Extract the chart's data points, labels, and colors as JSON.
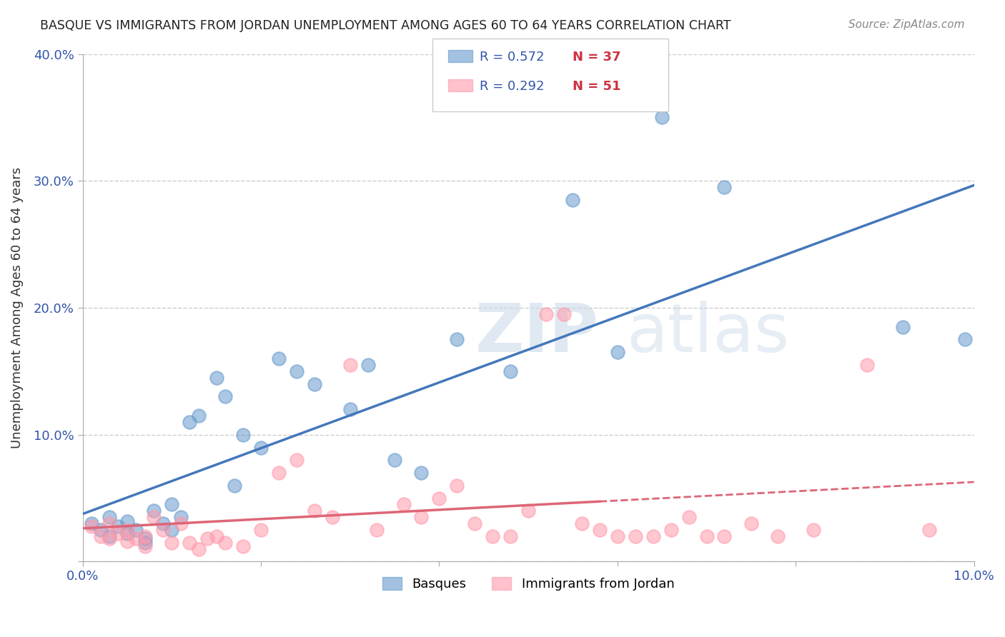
{
  "title": "BASQUE VS IMMIGRANTS FROM JORDAN UNEMPLOYMENT AMONG AGES 60 TO 64 YEARS CORRELATION CHART",
  "source": "Source: ZipAtlas.com",
  "xlabel": "",
  "ylabel": "Unemployment Among Ages 60 to 64 years",
  "xlim": [
    0.0,
    0.1
  ],
  "ylim": [
    0.0,
    0.4
  ],
  "xticks": [
    0.0,
    0.02,
    0.04,
    0.06,
    0.08,
    0.1
  ],
  "yticks": [
    0.0,
    0.1,
    0.2,
    0.3,
    0.4
  ],
  "xticklabels": [
    "0.0%",
    "",
    "",
    "",
    "",
    "10.0%"
  ],
  "yticklabels": [
    "",
    "10.0%",
    "20.0%",
    "30.0%",
    "40.0%"
  ],
  "grid_color": "#cccccc",
  "background_color": "#ffffff",
  "legend_r_blue": "R = 0.572",
  "legend_n_blue": "N = 37",
  "legend_r_pink": "R = 0.292",
  "legend_n_pink": "N = 51",
  "blue_color": "#6699cc",
  "pink_color": "#ff99aa",
  "blue_line_color": "#4477bb",
  "pink_line_color": "#dd6677",
  "basques_x": [
    0.001,
    0.002,
    0.003,
    0.003,
    0.004,
    0.005,
    0.005,
    0.006,
    0.007,
    0.007,
    0.008,
    0.009,
    0.01,
    0.01,
    0.011,
    0.012,
    0.013,
    0.015,
    0.016,
    0.017,
    0.018,
    0.02,
    0.022,
    0.024,
    0.026,
    0.03,
    0.032,
    0.035,
    0.038,
    0.042,
    0.048,
    0.055,
    0.06,
    0.065,
    0.072,
    0.092,
    0.099
  ],
  "basques_y": [
    0.03,
    0.025,
    0.02,
    0.035,
    0.028,
    0.022,
    0.032,
    0.025,
    0.015,
    0.018,
    0.04,
    0.03,
    0.025,
    0.045,
    0.035,
    0.11,
    0.115,
    0.145,
    0.13,
    0.06,
    0.1,
    0.09,
    0.16,
    0.15,
    0.14,
    0.12,
    0.155,
    0.08,
    0.07,
    0.175,
    0.15,
    0.285,
    0.165,
    0.35,
    0.295,
    0.185,
    0.175
  ],
  "jordan_x": [
    0.001,
    0.002,
    0.003,
    0.003,
    0.004,
    0.005,
    0.005,
    0.006,
    0.007,
    0.007,
    0.008,
    0.009,
    0.01,
    0.011,
    0.012,
    0.013,
    0.014,
    0.015,
    0.016,
    0.018,
    0.02,
    0.022,
    0.024,
    0.026,
    0.028,
    0.03,
    0.033,
    0.036,
    0.038,
    0.04,
    0.042,
    0.044,
    0.046,
    0.048,
    0.05,
    0.052,
    0.054,
    0.056,
    0.058,
    0.06,
    0.062,
    0.064,
    0.066,
    0.068,
    0.07,
    0.072,
    0.075,
    0.078,
    0.082,
    0.088,
    0.095
  ],
  "jordan_y": [
    0.028,
    0.02,
    0.018,
    0.03,
    0.022,
    0.016,
    0.025,
    0.018,
    0.012,
    0.02,
    0.035,
    0.025,
    0.015,
    0.03,
    0.015,
    0.01,
    0.018,
    0.02,
    0.015,
    0.012,
    0.025,
    0.07,
    0.08,
    0.04,
    0.035,
    0.155,
    0.025,
    0.045,
    0.035,
    0.05,
    0.06,
    0.03,
    0.02,
    0.02,
    0.04,
    0.195,
    0.195,
    0.03,
    0.025,
    0.02,
    0.02,
    0.02,
    0.025,
    0.035,
    0.02,
    0.02,
    0.03,
    0.02,
    0.025,
    0.155,
    0.025
  ]
}
